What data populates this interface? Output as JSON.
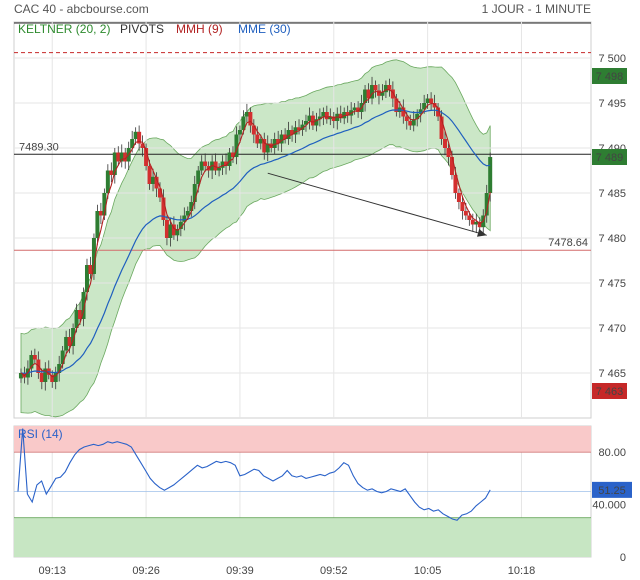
{
  "header": {
    "title": "CAC 40 - abcbourse.com",
    "period": "1 JOUR - 1 MINUTE"
  },
  "indicators": [
    {
      "label": "KELTNER (20, 2)",
      "color": "#2e8b2e"
    },
    {
      "label": "PIVOTS",
      "color": "#333333"
    },
    {
      "label": "MMH (9)",
      "color": "#b22222"
    },
    {
      "label": "MME (30)",
      "color": "#1f5fbf"
    }
  ],
  "rsi_label": "RSI (14)",
  "colors": {
    "up": "#2e7d32",
    "down": "#d32f2f",
    "band": "#b9dfb4",
    "band_edge": "#6aa85f",
    "mme": "#1f5fbf",
    "mmh": "#b22222",
    "last_price": "#2e7d32",
    "low_price": "#c62828",
    "rsi_line": "#2a62c9",
    "rsi_zone_high": "#f9c9c9",
    "rsi_zone_low": "#c7e6c3",
    "rsi_badge": "#2a62c9"
  },
  "chart_data": [
    {
      "type": "candlestick",
      "ylim": [
        7460,
        7504
      ],
      "y_ticks": [
        7465,
        7470,
        7475,
        7480,
        7485,
        7490,
        7495,
        7500
      ],
      "y_tick_labels": [
        "7 465",
        "7 470",
        "7 475",
        "7 480",
        "7 485",
        "7 490",
        "7 495",
        "7 500"
      ],
      "x_ticks": [
        9,
        36,
        63,
        90,
        117,
        144
      ],
      "x_tick_labels": [
        "09:13",
        "09:26",
        "09:39",
        "09:52",
        "10:05",
        "10:18"
      ],
      "x_range": [
        -2,
        164
      ],
      "pivot_line": {
        "value": 7489.3,
        "label": "7489.30"
      },
      "support_line": {
        "value": 7478.64,
        "label": "7478.64"
      },
      "resistance_line": {
        "value": 7500.6
      },
      "price_badges": [
        {
          "value": 7498,
          "label": "7 498",
          "kind": "high"
        },
        {
          "value": 7489,
          "label": "7 489",
          "kind": "last"
        },
        {
          "value": 7463,
          "label": "7 463",
          "kind": "low"
        }
      ],
      "trend_arrow": {
        "from": [
          71,
          7487.2
        ],
        "to": [
          134,
          7480.3
        ]
      },
      "closes": [
        7465,
        7464.5,
        7465.5,
        7467,
        7466.5,
        7465,
        7464,
        7465.5,
        7464.8,
        7464,
        7465,
        7466,
        7467.5,
        7469,
        7468,
        7470,
        7472,
        7471,
        7474,
        7477,
        7476,
        7480,
        7483,
        7482.5,
        7485,
        7487.5,
        7487,
        7489.5,
        7488.5,
        7489.5,
        7488.5,
        7490,
        7491,
        7491.8,
        7490.5,
        7490,
        7488,
        7486,
        7486.8,
        7485.5,
        7484.5,
        7482,
        7480,
        7481.5,
        7480.3,
        7481,
        7481.8,
        7482.5,
        7483,
        7484,
        7486,
        7487.5,
        7488.5,
        7488,
        7487.5,
        7488.5,
        7487.5,
        7487.8,
        7488.5,
        7488,
        7489.5,
        7489,
        7491.5,
        7492,
        7493.5,
        7494,
        7492.5,
        7491.5,
        7490.5,
        7491,
        7489.5,
        7490.5,
        7490,
        7491,
        7490.5,
        7491.5,
        7491,
        7492,
        7491.5,
        7492.3,
        7492,
        7492.6,
        7493,
        7493.6,
        7492.5,
        7493.2,
        7493.5,
        7494,
        7493.2,
        7493.5,
        7493,
        7493.8,
        7493.3,
        7494,
        7493.6,
        7494.2,
        7494.5,
        7494,
        7495,
        7496.5,
        7495.5,
        7497,
        7496.4,
        7495.8,
        7496.2,
        7497,
        7496.5,
        7495.5,
        7494,
        7494.5,
        7493.5,
        7493,
        7492.5,
        7493.2,
        7493.8,
        7494.3,
        7495,
        7495.5,
        7495,
        7494.5,
        7493.5,
        7491,
        7490,
        7489,
        7487,
        7485,
        7484,
        7483,
        7482.5,
        7482,
        7481.5,
        7481.8,
        7481.2,
        7482.5,
        7485,
        7489
      ]
    },
    {
      "type": "line",
      "name": "RSI (14)",
      "ylim": [
        0,
        100
      ],
      "y_ticks": [
        80,
        40,
        0
      ],
      "y_tick_labels": [
        "80.00",
        "40.000",
        "0"
      ],
      "zones": {
        "high": [
          80,
          100
        ],
        "low": [
          0,
          30
        ]
      },
      "last_value": {
        "value": 51.25,
        "label": "51.25"
      },
      "values": [
        50,
        98,
        48,
        42,
        55,
        58,
        48,
        54,
        60,
        61,
        65,
        72,
        78,
        82,
        84,
        85,
        86,
        85,
        86,
        88,
        87,
        88,
        87,
        86,
        84,
        78,
        72,
        66,
        60,
        56,
        53,
        51,
        53,
        55,
        58,
        61,
        64,
        67,
        70,
        68,
        69,
        71,
        73,
        72,
        73,
        72,
        70,
        62,
        63,
        65,
        67,
        66,
        62,
        60,
        58,
        60,
        62,
        66,
        62,
        61,
        62,
        60,
        61,
        62,
        63,
        62,
        64,
        65,
        68,
        72,
        70,
        62,
        56,
        53,
        51,
        52,
        50,
        49,
        50,
        52,
        51,
        50,
        52,
        47,
        42,
        38,
        36,
        37,
        35,
        36,
        33,
        31,
        29,
        28,
        32,
        33,
        35,
        39,
        42,
        45,
        51.25
      ]
    }
  ]
}
